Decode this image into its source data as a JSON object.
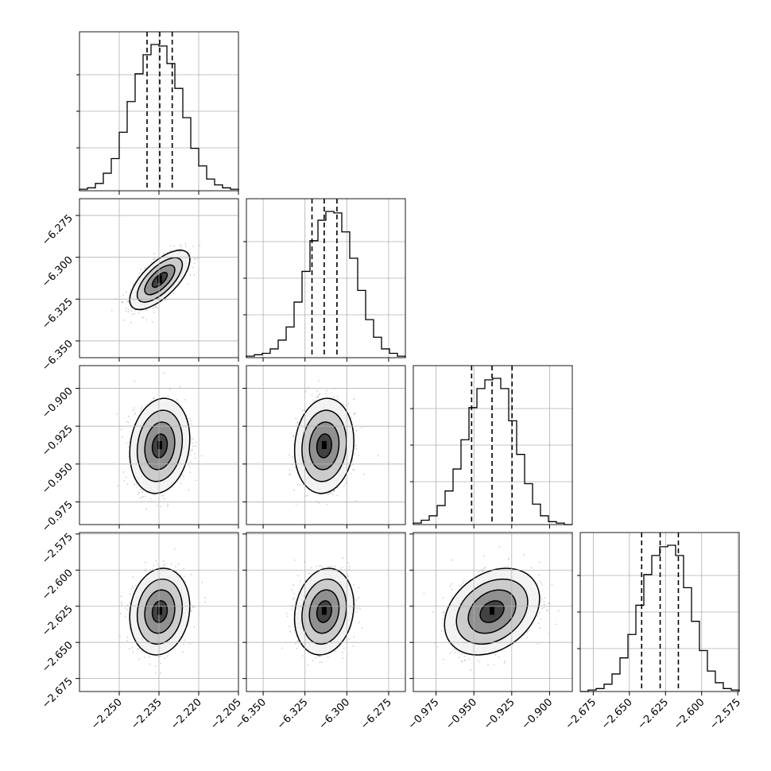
{
  "chart_data": {
    "type": "corner",
    "n_params": 4,
    "grid": true,
    "params": [
      {
        "range": [
          -2.265,
          -2.205
        ],
        "ticks": [
          -2.25,
          -2.235,
          -2.22,
          -2.205
        ],
        "tick_labels": [
          "−2.250",
          "−2.235",
          "−2.220",
          "−2.205"
        ],
        "quantiles": [
          -2.2395,
          -2.2347,
          -2.23
        ],
        "hist": [
          0.01,
          0.02,
          0.05,
          0.12,
          0.22,
          0.4,
          0.61,
          0.8,
          0.93,
          1.0,
          0.99,
          0.87,
          0.7,
          0.5,
          0.29,
          0.17,
          0.08,
          0.04,
          0.02,
          0.01
        ]
      },
      {
        "range": [
          -6.36,
          -6.265
        ],
        "ticks": [
          -6.35,
          -6.325,
          -6.3,
          -6.275
        ],
        "tick_labels": [
          "−6.350",
          "−6.325",
          "−6.300",
          "−6.275"
        ],
        "quantiles": [
          -6.3208,
          -6.3135,
          -6.3059
        ],
        "hist": [
          0.01,
          0.02,
          0.03,
          0.06,
          0.12,
          0.21,
          0.38,
          0.59,
          0.8,
          0.94,
          1.0,
          0.99,
          0.86,
          0.68,
          0.46,
          0.26,
          0.14,
          0.06,
          0.03,
          0.01
        ]
      },
      {
        "range": [
          -0.99,
          -0.885
        ],
        "ticks": [
          -0.975,
          -0.95,
          -0.925,
          -0.9
        ],
        "tick_labels": [
          "−0.975",
          "−0.950",
          "−0.925",
          "−0.900"
        ],
        "quantiles": [
          -0.9515,
          -0.938,
          -0.9248
        ],
        "hist": [
          0.01,
          0.03,
          0.06,
          0.13,
          0.23,
          0.38,
          0.58,
          0.8,
          0.93,
          0.99,
          1.0,
          0.93,
          0.71,
          0.48,
          0.28,
          0.14,
          0.06,
          0.02,
          0.01,
          0.0
        ]
      },
      {
        "range": [
          -2.684,
          -2.574
        ],
        "ticks": [
          -2.675,
          -2.65,
          -2.625,
          -2.6,
          -2.575
        ],
        "tick_labels": [
          "−2.675",
          "−2.650",
          "−2.625",
          "−2.600",
          "−2.575"
        ],
        "quantiles": [
          -2.6415,
          -2.6287,
          -2.6161
        ],
        "hist": [
          0.0,
          0.01,
          0.02,
          0.05,
          0.12,
          0.23,
          0.39,
          0.59,
          0.8,
          0.93,
          0.99,
          1.0,
          0.93,
          0.71,
          0.48,
          0.28,
          0.14,
          0.06,
          0.02,
          0.01
        ]
      }
    ],
    "y_tick_panels": [
      {
        "param": 1,
        "ticks": [
          -6.35,
          -6.325,
          -6.3,
          -6.275
        ],
        "tick_labels": [
          "−6.350",
          "−6.325",
          "−6.300",
          "−6.275"
        ]
      },
      {
        "param": 2,
        "ticks": [
          -0.975,
          -0.95,
          -0.925,
          -0.9
        ],
        "tick_labels": [
          "−0.975",
          "−0.950",
          "−0.925",
          "−0.900"
        ]
      },
      {
        "param": 3,
        "ticks": [
          -2.675,
          -2.65,
          -2.625,
          -2.6,
          -2.575
        ],
        "tick_labels": [
          "−2.675",
          "−2.650",
          "−2.625",
          "−2.600",
          "−2.575"
        ]
      }
    ],
    "pairs": [
      {
        "row": 1,
        "col": 0,
        "center": [
          -2.2347,
          -6.3135
        ],
        "sd": [
          0.0048,
          0.0075
        ],
        "corr": 0.68
      },
      {
        "row": 2,
        "col": 0,
        "center": [
          -2.2347,
          -0.938
        ],
        "sd": [
          0.0048,
          0.0133
        ],
        "corr": 0.15
      },
      {
        "row": 2,
        "col": 1,
        "center": [
          -6.3135,
          -0.938
        ],
        "sd": [
          0.0075,
          0.0133
        ],
        "corr": 0.1
      },
      {
        "row": 3,
        "col": 0,
        "center": [
          -2.2347,
          -2.6287
        ],
        "sd": [
          0.0048,
          0.0127
        ],
        "corr": 0.12
      },
      {
        "row": 3,
        "col": 1,
        "center": [
          -6.3135,
          -2.6287
        ],
        "sd": [
          0.0075,
          0.0127
        ],
        "corr": 0.15
      },
      {
        "row": 3,
        "col": 2,
        "center": [
          -0.938,
          -2.6287
        ],
        "sd": [
          0.0133,
          0.0127
        ],
        "corr": 0.3
      }
    ],
    "contour_levels_sigma": [
      0.5,
      1.0,
      1.5,
      2.0
    ]
  }
}
